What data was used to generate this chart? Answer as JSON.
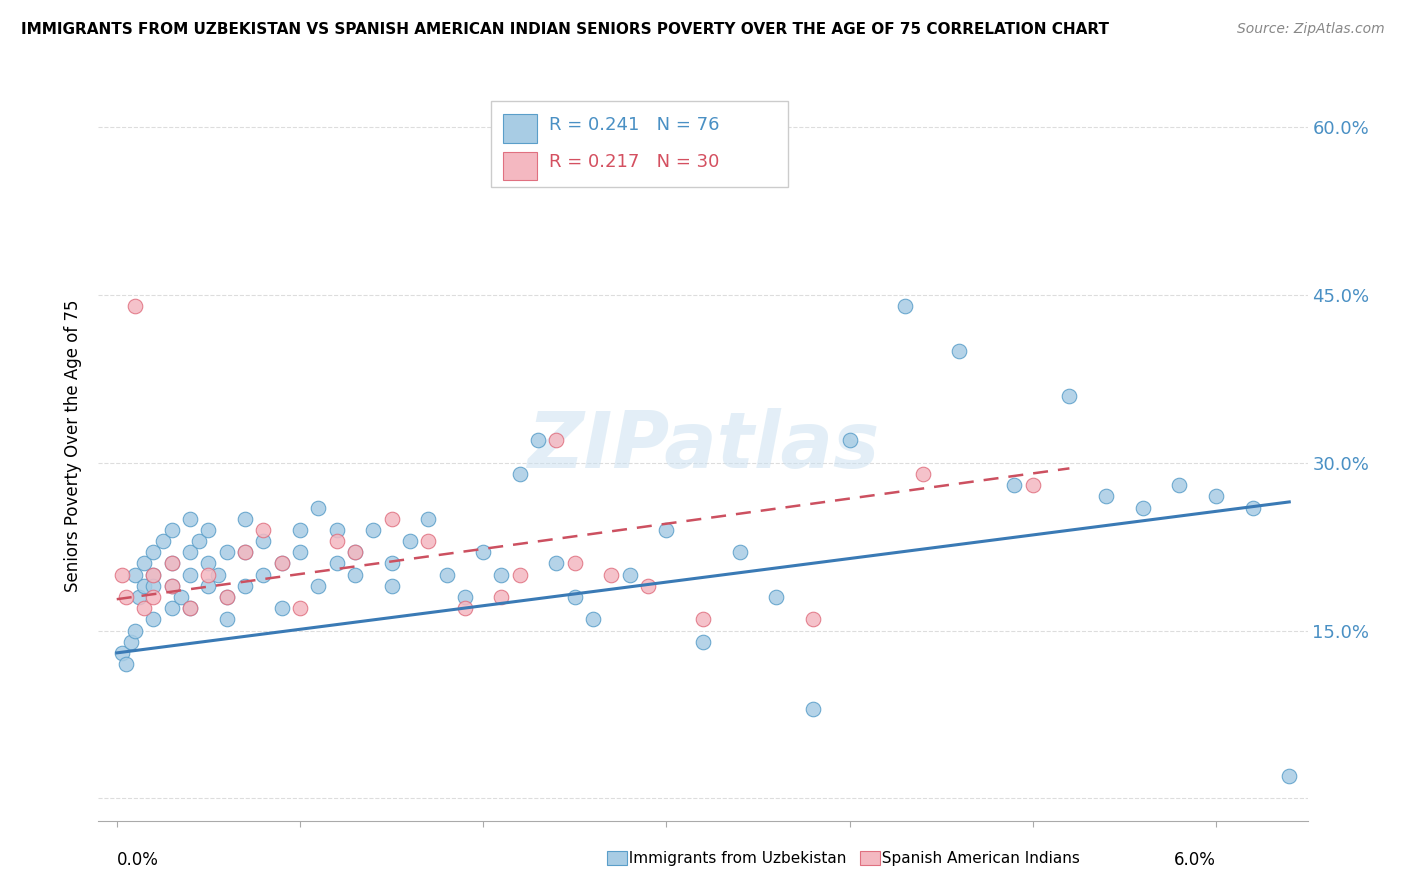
{
  "title": "IMMIGRANTS FROM UZBEKISTAN VS SPANISH AMERICAN INDIAN SENIORS POVERTY OVER THE AGE OF 75 CORRELATION CHART",
  "source": "Source: ZipAtlas.com",
  "ylabel": "Seniors Poverty Over the Age of 75",
  "yticks": [
    0.0,
    0.15,
    0.3,
    0.45,
    0.6
  ],
  "xlim": [
    -0.001,
    0.065
  ],
  "ylim": [
    -0.02,
    0.65
  ],
  "legend_r1": "R = 0.241",
  "legend_n1": "N = 76",
  "legend_r2": "R = 0.217",
  "legend_n2": "N = 30",
  "color_blue": "#a8cce4",
  "color_pink": "#f4b8c1",
  "color_blue_edge": "#5a9ec9",
  "color_pink_edge": "#e07080",
  "color_blue_text": "#4a90c4",
  "color_pink_text": "#d45060",
  "color_blue_line": "#3a7ab5",
  "color_pink_line": "#cc5060",
  "watermark": "ZIPatlas",
  "blue_points_x": [
    0.0003,
    0.0005,
    0.0008,
    0.001,
    0.001,
    0.0012,
    0.0015,
    0.0015,
    0.002,
    0.002,
    0.002,
    0.002,
    0.0025,
    0.003,
    0.003,
    0.003,
    0.003,
    0.0035,
    0.004,
    0.004,
    0.004,
    0.004,
    0.0045,
    0.005,
    0.005,
    0.005,
    0.0055,
    0.006,
    0.006,
    0.006,
    0.007,
    0.007,
    0.007,
    0.008,
    0.008,
    0.009,
    0.009,
    0.01,
    0.01,
    0.011,
    0.011,
    0.012,
    0.012,
    0.013,
    0.013,
    0.014,
    0.015,
    0.015,
    0.016,
    0.017,
    0.018,
    0.019,
    0.02,
    0.021,
    0.022,
    0.023,
    0.024,
    0.025,
    0.026,
    0.028,
    0.03,
    0.032,
    0.034,
    0.036,
    0.038,
    0.04,
    0.043,
    0.046,
    0.049,
    0.052,
    0.054,
    0.056,
    0.058,
    0.06,
    0.062,
    0.064
  ],
  "blue_points_y": [
    0.13,
    0.12,
    0.14,
    0.15,
    0.2,
    0.18,
    0.21,
    0.19,
    0.22,
    0.2,
    0.19,
    0.16,
    0.23,
    0.17,
    0.19,
    0.21,
    0.24,
    0.18,
    0.22,
    0.2,
    0.25,
    0.17,
    0.23,
    0.19,
    0.21,
    0.24,
    0.2,
    0.22,
    0.18,
    0.16,
    0.25,
    0.22,
    0.19,
    0.23,
    0.2,
    0.21,
    0.17,
    0.24,
    0.22,
    0.26,
    0.19,
    0.21,
    0.24,
    0.2,
    0.22,
    0.24,
    0.19,
    0.21,
    0.23,
    0.25,
    0.2,
    0.18,
    0.22,
    0.2,
    0.29,
    0.32,
    0.21,
    0.18,
    0.16,
    0.2,
    0.24,
    0.14,
    0.22,
    0.18,
    0.08,
    0.32,
    0.44,
    0.4,
    0.28,
    0.36,
    0.27,
    0.26,
    0.28,
    0.27,
    0.26,
    0.02
  ],
  "pink_points_x": [
    0.0003,
    0.0005,
    0.001,
    0.0015,
    0.002,
    0.002,
    0.003,
    0.003,
    0.004,
    0.005,
    0.006,
    0.007,
    0.008,
    0.009,
    0.01,
    0.012,
    0.013,
    0.015,
    0.017,
    0.019,
    0.021,
    0.022,
    0.024,
    0.025,
    0.027,
    0.029,
    0.032,
    0.038,
    0.044,
    0.05
  ],
  "pink_points_y": [
    0.2,
    0.18,
    0.44,
    0.17,
    0.2,
    0.18,
    0.21,
    0.19,
    0.17,
    0.2,
    0.18,
    0.22,
    0.24,
    0.21,
    0.17,
    0.23,
    0.22,
    0.25,
    0.23,
    0.17,
    0.18,
    0.2,
    0.32,
    0.21,
    0.2,
    0.19,
    0.16,
    0.16,
    0.29,
    0.28
  ],
  "blue_trend_x": [
    0.0,
    0.064
  ],
  "blue_trend_y": [
    0.13,
    0.265
  ],
  "pink_trend_x": [
    0.0,
    0.052
  ],
  "pink_trend_y": [
    0.178,
    0.295
  ]
}
